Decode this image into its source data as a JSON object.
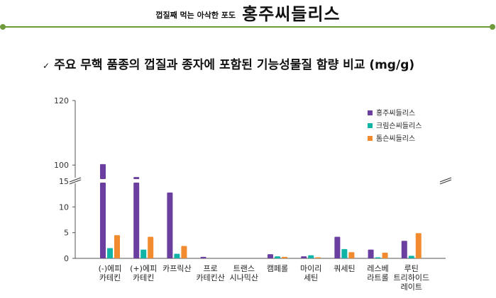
{
  "header": {
    "small": "껍질째 먹는 아삭한 포도",
    "big": "홍주씨들리스"
  },
  "subtitle": {
    "check": "✓",
    "text": "주요 무핵 품종의 껍질과 종자에 포함된 기능성물질 함량 비교 (mg/g)"
  },
  "chart_data": {
    "type": "bar",
    "title": "",
    "xlabel": "",
    "ylabel": "",
    "y_axis": {
      "scale": "broken",
      "lower_range": [
        0,
        15
      ],
      "upper_range": [
        95,
        120
      ],
      "ticks": [
        "0",
        "5",
        "10",
        "15",
        "100",
        "120"
      ]
    },
    "grid": false,
    "legend_position": "top-right",
    "categories": [
      [
        "(-)에피",
        "카테킨"
      ],
      [
        "(+)에피",
        "카테킨"
      ],
      [
        "카프릭산"
      ],
      [
        "프로",
        "카테킨산"
      ],
      [
        "트랜스",
        "시나믹산"
      ],
      [
        "캠페롤"
      ],
      [
        "마이리",
        "세틴"
      ],
      [
        "쿼세틴"
      ],
      [
        "레스베",
        "라트롤"
      ],
      [
        "루틴",
        "트리하이드",
        "레이트"
      ]
    ],
    "series": [
      {
        "name": "홍주씨들리스",
        "color": "#6a3fa0",
        "values": [
          100.3,
          96.3,
          12.8,
          0.3,
          0.0,
          0.8,
          0.4,
          4.2,
          1.7,
          3.4
        ]
      },
      {
        "name": "크림슨씨들리스",
        "color": "#12b4a8",
        "values": [
          2.0,
          1.7,
          0.9,
          0.0,
          0.0,
          0.4,
          0.6,
          1.8,
          0.2,
          0.5
        ]
      },
      {
        "name": "톰슨씨들리스",
        "color": "#f28a30",
        "values": [
          4.5,
          4.2,
          2.4,
          0.0,
          0.0,
          0.3,
          0.2,
          1.2,
          1.1,
          4.9
        ]
      }
    ]
  }
}
